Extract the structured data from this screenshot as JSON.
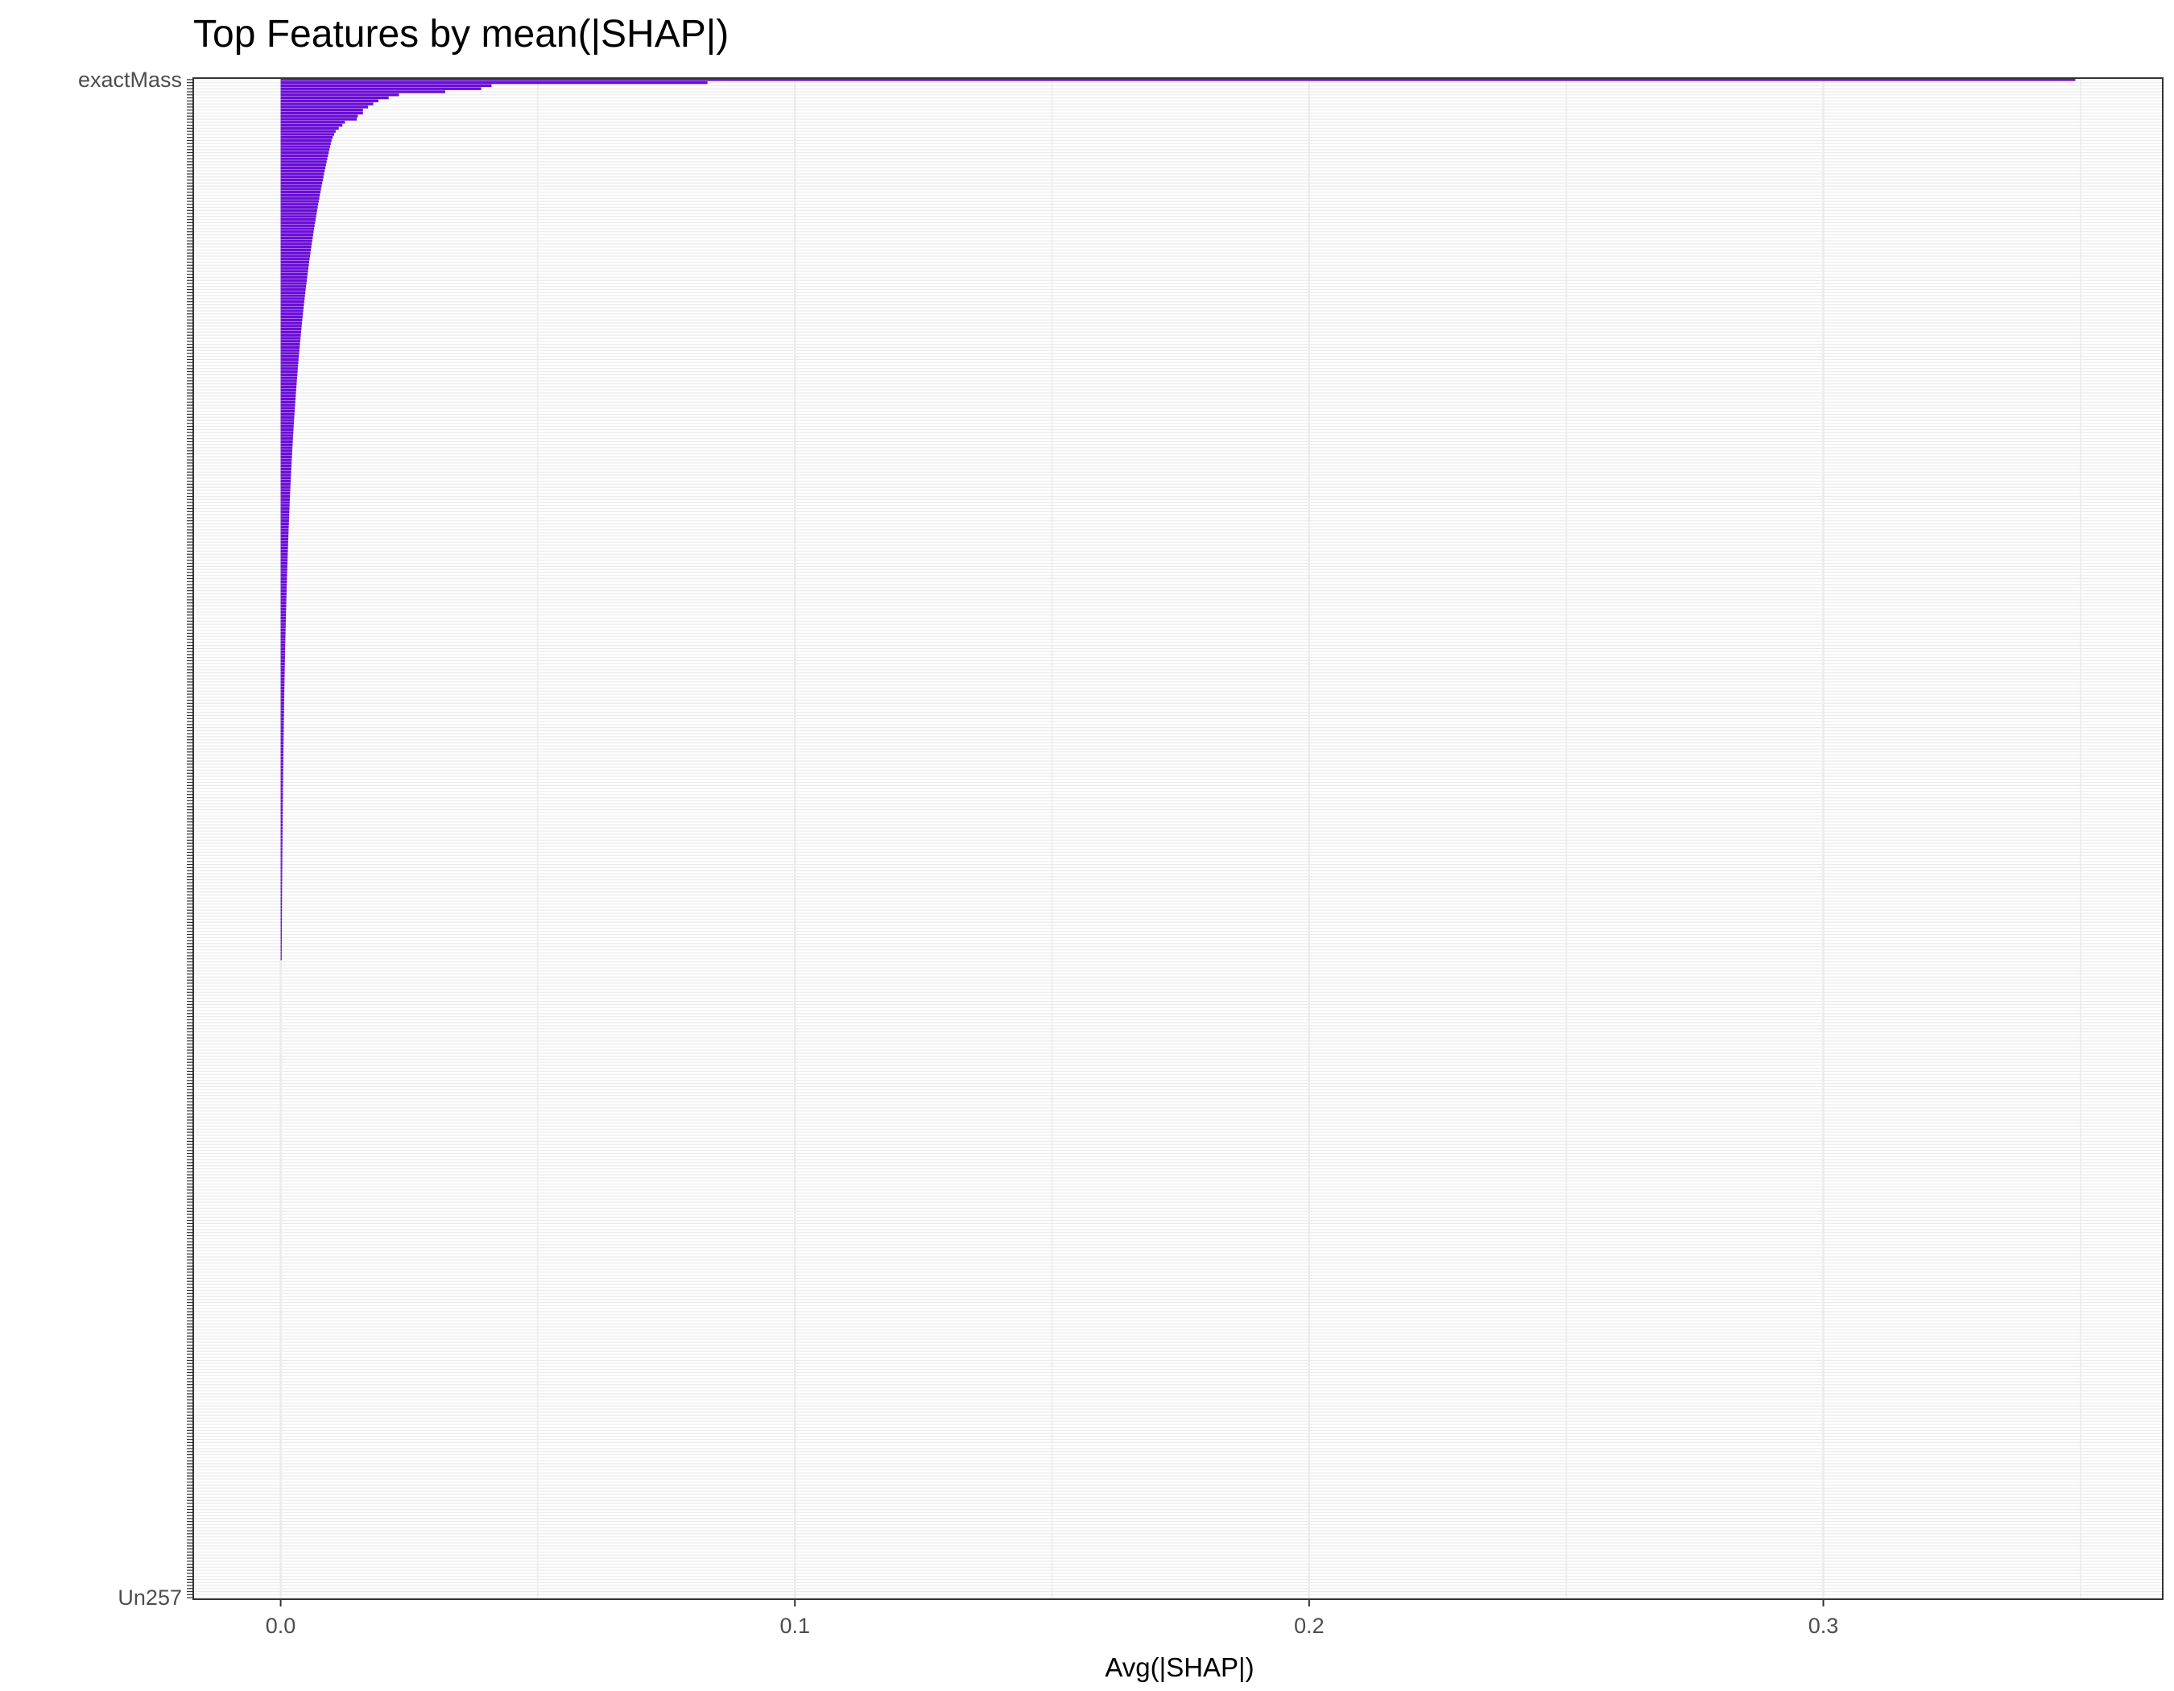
{
  "chart_data": {
    "type": "bar",
    "orientation": "horizontal",
    "title": "Top Features by mean(|SHAP|)",
    "xlabel": "Avg(|SHAP|)",
    "ylabel": "",
    "xlim": [
      -0.017,
      0.366
    ],
    "xticks": [
      0.0,
      0.1,
      0.2,
      0.3
    ],
    "xtick_labels": [
      "0.0",
      "0.1",
      "0.2",
      "0.3"
    ],
    "grid": true,
    "bar_color": "#6a0dd6",
    "panel_border_color": "#333333",
    "grid_color": "#ebebeb",
    "category_count": 500,
    "categories_readable": [
      "exactMass",
      "Un257"
    ],
    "leading_values": [
      0.349,
      0.083,
      0.041,
      0.039,
      0.032,
      0.023,
      0.021,
      0.019,
      0.018,
      0.017,
      0.016,
      0.016,
      0.015,
      0.0148,
      0.0125,
      0.012,
      0.0113,
      0.0107,
      0.0104,
      0.0101
    ],
    "mid_values_start": 0.0099,
    "mid_values_end": 0.0002,
    "mid_count": 270,
    "zero_count": 210,
    "annotations": []
  }
}
